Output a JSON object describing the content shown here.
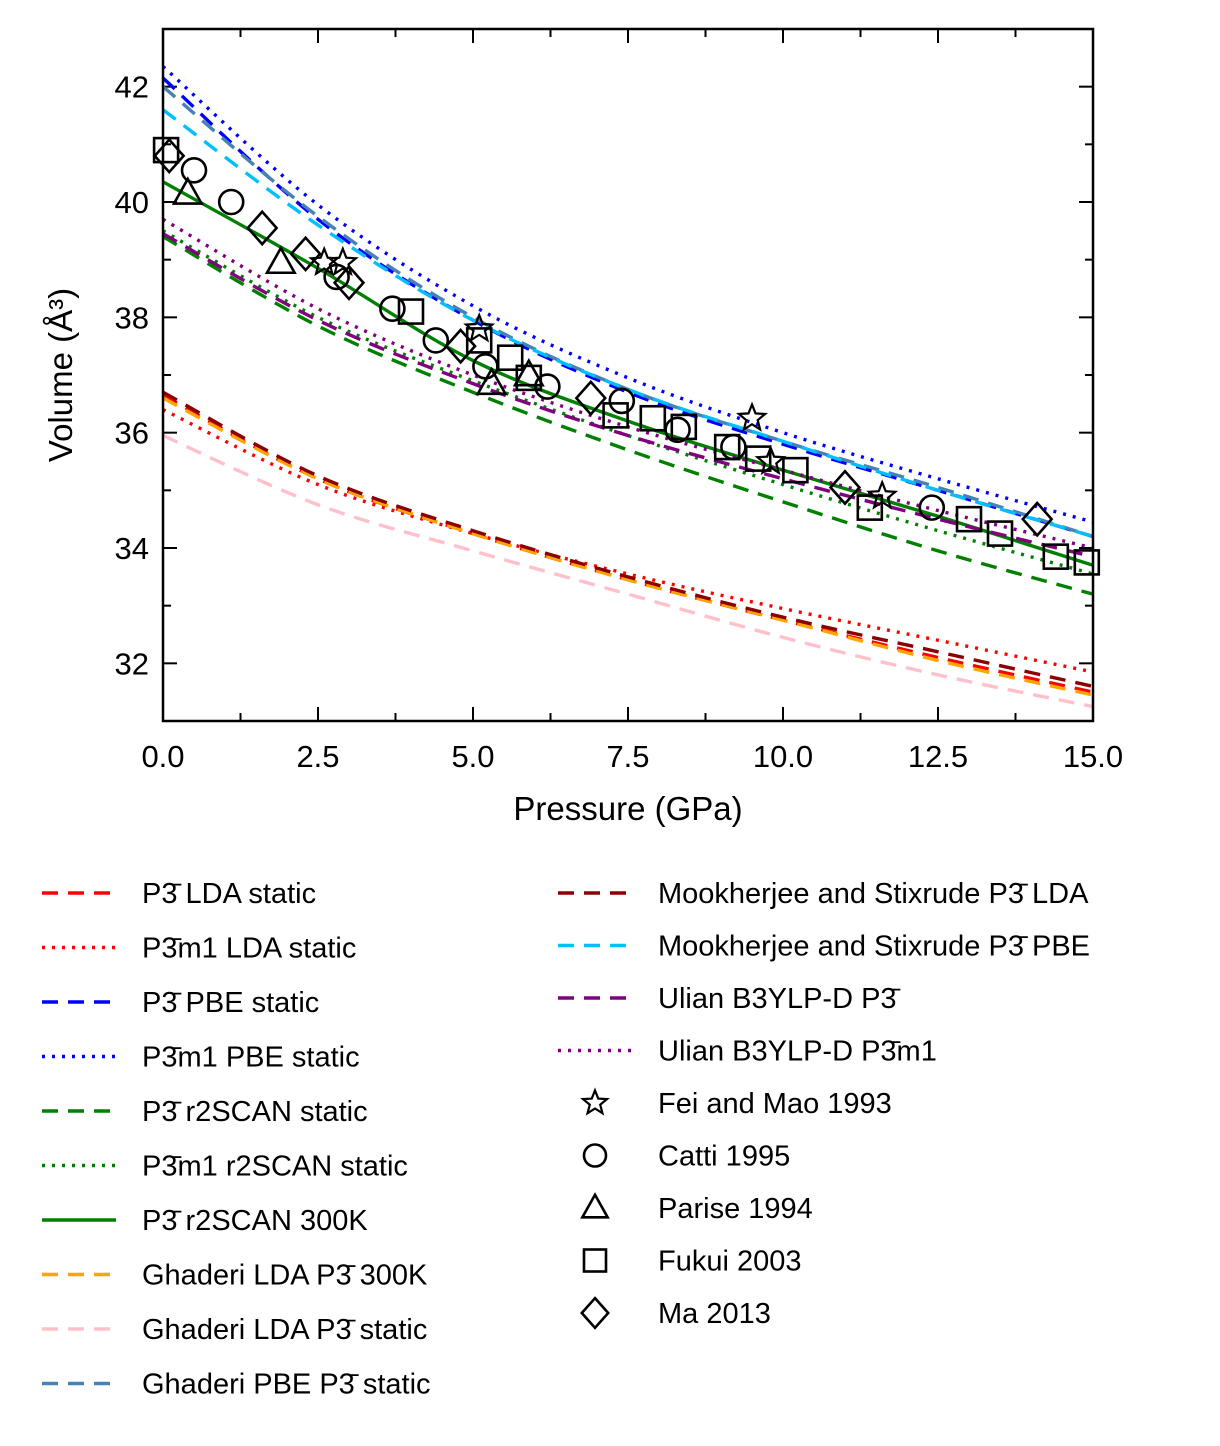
{
  "chart_data": {
    "type": "line",
    "title": "",
    "xlabel": "Pressure (GPa)",
    "ylabel": "Volume (Å³)",
    "xlim": [
      0,
      15
    ],
    "ylim": [
      31,
      43
    ],
    "xticks": [
      0,
      2.5,
      5,
      7.5,
      10,
      12.5,
      15
    ],
    "xtick_labels": [
      "0.0",
      "2.5",
      "5.0",
      "7.5",
      "10.0",
      "12.5",
      "15.0"
    ],
    "yticks": [
      32,
      34,
      36,
      38,
      40,
      42
    ],
    "ytick_labels": [
      "32",
      "34",
      "36",
      "38",
      "40",
      "42"
    ],
    "legend_position": "below",
    "series": [
      {
        "name": "P3̄ LDA static",
        "kind": "line",
        "color": "#ff0000",
        "dash": "dashed",
        "x": [
          0,
          2.5,
          5,
          7.5,
          10,
          12.5,
          15
        ],
        "y": [
          36.65,
          35.2,
          34.25,
          33.45,
          32.75,
          32.1,
          31.5
        ]
      },
      {
        "name": "P3̄m1 LDA static",
        "kind": "line",
        "color": "#ff0000",
        "dash": "dotted",
        "x": [
          0,
          2.5,
          5,
          7.5,
          10,
          12.5,
          15
        ],
        "y": [
          36.4,
          35.1,
          34.25,
          33.55,
          32.95,
          32.4,
          31.85
        ]
      },
      {
        "name": "P3̄ PBE static",
        "kind": "line",
        "color": "#0000ff",
        "dash": "dashed",
        "x": [
          0,
          2.5,
          5,
          7.5,
          10,
          12.5,
          15
        ],
        "y": [
          42.15,
          39.7,
          37.95,
          36.7,
          35.8,
          35.0,
          34.2
        ]
      },
      {
        "name": "P3̄m1 PBE static",
        "kind": "line",
        "color": "#0000ff",
        "dash": "dotted",
        "x": [
          0,
          2.5,
          5,
          7.5,
          10,
          12.5,
          15
        ],
        "y": [
          42.35,
          39.95,
          38.2,
          36.95,
          36.0,
          35.2,
          34.45
        ]
      },
      {
        "name": "P3̄ r2SCAN static",
        "kind": "line",
        "color": "#008000",
        "dash": "dashed",
        "x": [
          0,
          2.5,
          5,
          7.5,
          10,
          12.5,
          15
        ],
        "y": [
          39.4,
          37.85,
          36.7,
          35.7,
          34.8,
          33.95,
          33.2
        ]
      },
      {
        "name": "P3̄m1 r2SCAN static",
        "kind": "line",
        "color": "#008000",
        "dash": "dotted",
        "x": [
          0,
          2.5,
          5,
          7.5,
          10,
          12.5,
          15
        ],
        "y": [
          39.5,
          38.0,
          36.9,
          35.95,
          35.1,
          34.3,
          33.55
        ]
      },
      {
        "name": "P3̄ r2SCAN 300K",
        "kind": "line",
        "color": "#008000",
        "dash": "solid",
        "x": [
          0,
          2.5,
          5,
          7.5,
          10,
          12.5,
          15
        ],
        "y": [
          40.35,
          38.85,
          37.25,
          36.2,
          35.35,
          34.55,
          33.7
        ]
      },
      {
        "name": "Ghaderi LDA P3̄ 300K",
        "kind": "line",
        "color": "#ffa500",
        "dash": "dashed",
        "x": [
          0,
          2.5,
          5,
          7.5,
          10,
          12.5,
          15
        ],
        "y": [
          36.6,
          35.2,
          34.25,
          33.45,
          32.75,
          32.05,
          31.45
        ]
      },
      {
        "name": "Ghaderi LDA P3̄ static",
        "kind": "line",
        "color": "#ffc0cb",
        "dash": "dashed",
        "x": [
          0,
          2.5,
          5,
          7.5,
          10,
          12.5,
          15
        ],
        "y": [
          35.95,
          34.75,
          33.95,
          33.2,
          32.45,
          31.8,
          31.25
        ]
      },
      {
        "name": "Ghaderi PBE P3̄ static",
        "kind": "line",
        "color": "#4682b4",
        "dash": "dashed",
        "x": [
          0,
          2.5,
          5,
          7.5,
          10,
          12.5,
          15
        ],
        "y": [
          42.0,
          39.75,
          38.0,
          36.75,
          35.85,
          35.05,
          34.2
        ]
      },
      {
        "name": "Mookherjee and Stixrude P3̄ LDA",
        "kind": "line",
        "color": "#8b0000",
        "dash": "dashed",
        "x": [
          0,
          2.5,
          5,
          7.5,
          10,
          12.5,
          15
        ],
        "y": [
          36.7,
          35.25,
          34.3,
          33.5,
          32.8,
          32.2,
          31.6
        ]
      },
      {
        "name": "Mookherjee and Stixrude P3̄ PBE",
        "kind": "line",
        "color": "#00bfff",
        "dash": "dashed",
        "x": [
          0,
          2.5,
          5,
          7.5,
          10,
          12.5,
          15
        ],
        "y": [
          41.6,
          39.6,
          37.95,
          36.75,
          35.85,
          35.0,
          34.2
        ]
      },
      {
        "name": "Ulian B3YLP-D P3̄",
        "kind": "line",
        "color": "#800080",
        "dash": "dashed",
        "x": [
          0,
          2.5,
          5,
          7.5,
          10,
          12.5,
          15
        ],
        "y": [
          39.45,
          37.95,
          36.85,
          35.95,
          35.2,
          34.5,
          33.85
        ]
      },
      {
        "name": "Ulian B3YLP-D P3̄m1",
        "kind": "line",
        "color": "#800080",
        "dash": "dotted",
        "x": [
          0,
          2.5,
          5,
          7.5,
          10,
          12.5,
          15
        ],
        "y": [
          39.7,
          38.15,
          37.0,
          36.1,
          35.35,
          34.65,
          34.0
        ]
      },
      {
        "name": "Fei and Mao 1993",
        "kind": "scatter",
        "marker": "star",
        "color": "#000000",
        "x": [
          2.6,
          2.9,
          5.1,
          9.5,
          9.8,
          11.6
        ],
        "y": [
          38.95,
          38.95,
          37.8,
          36.25,
          35.5,
          34.9
        ]
      },
      {
        "name": "Catti 1995",
        "kind": "scatter",
        "marker": "circle",
        "color": "#000000",
        "x": [
          0.5,
          1.1,
          2.8,
          3.7,
          4.4,
          5.2,
          6.2,
          7.4,
          8.3,
          9.2,
          12.4
        ],
        "y": [
          40.55,
          40.0,
          38.7,
          38.15,
          37.6,
          37.15,
          36.8,
          36.55,
          36.05,
          35.75,
          34.7
        ]
      },
      {
        "name": "Parise 1994",
        "kind": "scatter",
        "marker": "triangle",
        "color": "#000000",
        "x": [
          0.4,
          1.9,
          5.3,
          5.9
        ],
        "y": [
          40.15,
          38.95,
          36.85,
          37.0
        ]
      },
      {
        "name": "Fukui 2003",
        "kind": "scatter",
        "marker": "square",
        "color": "#000000",
        "x": [
          0.05,
          4.0,
          5.1,
          5.6,
          5.9,
          7.3,
          7.9,
          8.4,
          9.1,
          9.6,
          10.2,
          11.4,
          13.0,
          13.5,
          14.4,
          14.9
        ],
        "y": [
          40.9,
          38.1,
          37.6,
          37.3,
          36.95,
          36.3,
          36.25,
          36.1,
          35.75,
          35.55,
          35.35,
          34.7,
          34.5,
          34.25,
          33.85,
          33.75
        ]
      },
      {
        "name": "Ma 2013",
        "kind": "scatter",
        "marker": "diamond",
        "color": "#000000",
        "x": [
          0.1,
          1.6,
          2.3,
          3.0,
          4.8,
          6.9,
          11.0,
          14.1
        ],
        "y": [
          40.8,
          39.55,
          39.1,
          38.6,
          37.5,
          36.6,
          35.05,
          34.5
        ]
      }
    ]
  }
}
